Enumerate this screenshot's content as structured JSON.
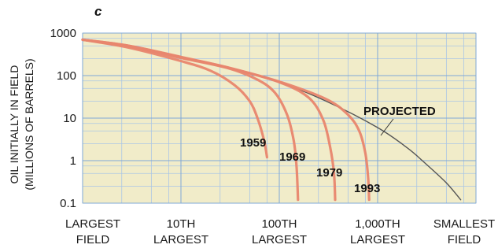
{
  "panel_label": "c",
  "chart_data": {
    "type": "line",
    "title": "",
    "ylabel_lines": [
      "OIL INITIALLY IN FIELD",
      "(MILLIONS OF BARRELS)"
    ],
    "xlabel": "",
    "y_scale": "log",
    "ylim": [
      0.1,
      1000
    ],
    "y_ticks": [
      {
        "value": 1000,
        "label": "1000"
      },
      {
        "value": 100,
        "label": "100"
      },
      {
        "value": 10,
        "label": "10"
      },
      {
        "value": 1,
        "label": "1"
      },
      {
        "value": 0.1,
        "label": "0.1"
      }
    ],
    "x_scale": "rank (log)",
    "xlim": [
      1,
      10000
    ],
    "x_ticks": [
      {
        "value": 1,
        "lines": [
          "LARGEST",
          "FIELD"
        ]
      },
      {
        "value": 10,
        "lines": [
          "10TH",
          "LARGEST"
        ]
      },
      {
        "value": 100,
        "lines": [
          "100TH",
          "LARGEST"
        ]
      },
      {
        "value": 1000,
        "lines": [
          "1,000TH",
          "LARGEST"
        ]
      },
      {
        "value": 10000,
        "lines": [
          "SMALLEST",
          "FIELD"
        ]
      }
    ],
    "grid": true,
    "series": [
      {
        "name": "PROJECTED",
        "color": "#555555",
        "points": [
          [
            1,
            700
          ],
          [
            3,
            500
          ],
          [
            10,
            280
          ],
          [
            30,
            150
          ],
          [
            100,
            70
          ],
          [
            300,
            25
          ],
          [
            1000,
            6
          ],
          [
            2000,
            2
          ],
          [
            3000,
            0.9
          ],
          [
            5000,
            0.3
          ],
          [
            7000,
            0.12
          ]
        ]
      },
      {
        "name": "1959",
        "color": "#e8866e",
        "points": [
          [
            1,
            700
          ],
          [
            3,
            450
          ],
          [
            10,
            220
          ],
          [
            20,
            130
          ],
          [
            35,
            60
          ],
          [
            50,
            25
          ],
          [
            60,
            10
          ],
          [
            70,
            3
          ],
          [
            75,
            1.2
          ]
        ]
      },
      {
        "name": "1969",
        "color": "#e8866e",
        "points": [
          [
            1,
            700
          ],
          [
            3,
            480
          ],
          [
            10,
            260
          ],
          [
            30,
            150
          ],
          [
            60,
            80
          ],
          [
            90,
            40
          ],
          [
            120,
            12
          ],
          [
            140,
            3
          ],
          [
            150,
            0.7
          ],
          [
            155,
            0.12
          ]
        ]
      },
      {
        "name": "1979",
        "color": "#e8866e",
        "points": [
          [
            1,
            700
          ],
          [
            3,
            500
          ],
          [
            10,
            270
          ],
          [
            30,
            155
          ],
          [
            100,
            70
          ],
          [
            200,
            30
          ],
          [
            280,
            9
          ],
          [
            330,
            2
          ],
          [
            360,
            0.5
          ],
          [
            370,
            0.12
          ]
        ]
      },
      {
        "name": "1993",
        "color": "#e8866e",
        "points": [
          [
            1,
            700
          ],
          [
            3,
            500
          ],
          [
            10,
            275
          ],
          [
            30,
            155
          ],
          [
            100,
            72
          ],
          [
            300,
            28
          ],
          [
            500,
            12
          ],
          [
            650,
            5
          ],
          [
            750,
            1.5
          ],
          [
            800,
            0.4
          ],
          [
            820,
            0.12
          ]
        ]
      }
    ]
  }
}
